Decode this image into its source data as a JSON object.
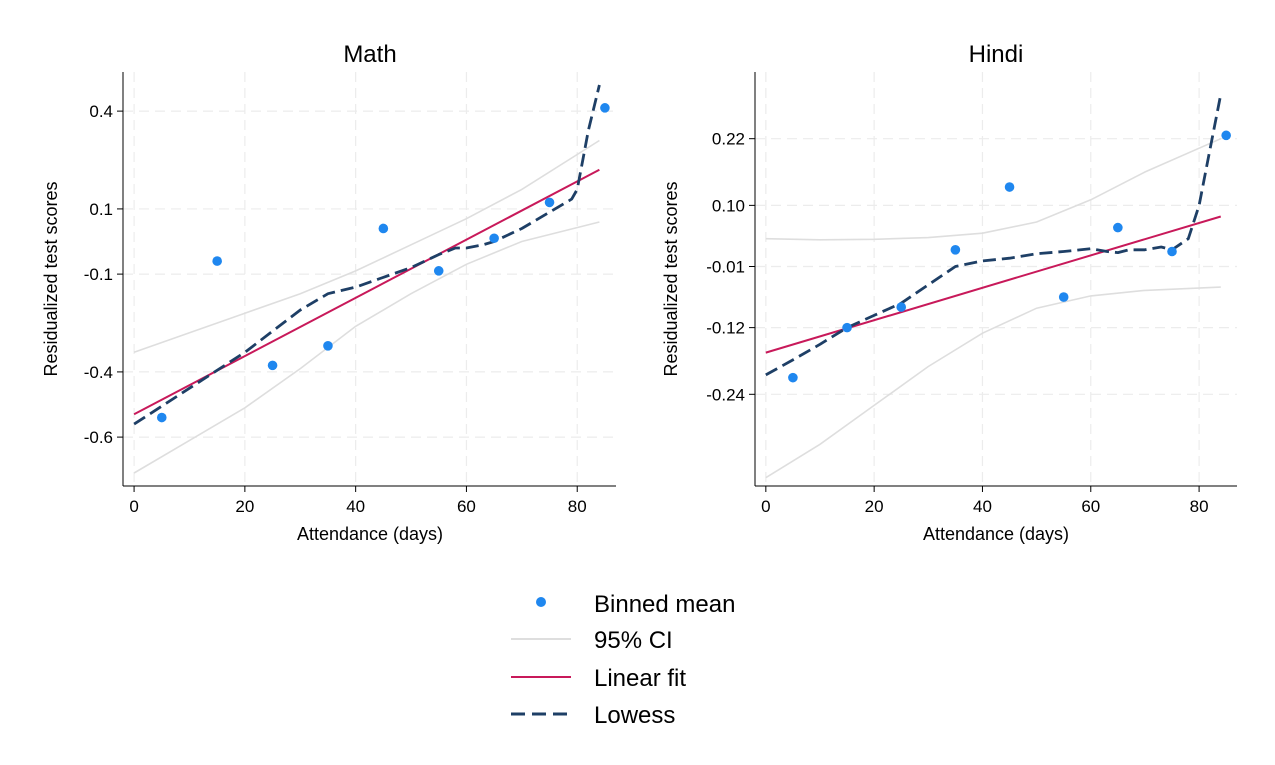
{
  "legend": {
    "placement": "bottom-center",
    "items": [
      {
        "key": "binned",
        "label": "Binned mean",
        "color": "#1f87ef"
      },
      {
        "key": "ci",
        "label": "95% CI",
        "color": "#dedede"
      },
      {
        "key": "linear",
        "label": "Linear fit",
        "color": "#c8195a"
      },
      {
        "key": "lowess",
        "label": "Lowess",
        "color": "#1e3f66"
      }
    ]
  },
  "chart_data": [
    {
      "type": "scatter",
      "title": "Math",
      "xlabel": "Attendance (days)",
      "ylabel": "Residualized test scores",
      "xlim": [
        -2,
        87
      ],
      "ylim": [
        -0.75,
        0.52
      ],
      "xticks": [
        0,
        20,
        40,
        60,
        80
      ],
      "xtick_labels": [
        "0",
        "20",
        "40",
        "60",
        "80"
      ],
      "yticks": [
        0.4,
        0.1,
        -0.1,
        -0.4,
        -0.6
      ],
      "ytick_labels": [
        "0.4",
        "0.1",
        "-0.1",
        "-0.4",
        "-0.6"
      ],
      "grid": true,
      "binned_mean": {
        "x": [
          5,
          15,
          25,
          35,
          45,
          55,
          65,
          75,
          85
        ],
        "y": [
          -0.54,
          -0.06,
          -0.38,
          -0.32,
          0.04,
          -0.09,
          0.01,
          0.12,
          0.41
        ]
      },
      "linear_fit": {
        "x": [
          0,
          84
        ],
        "y": [
          -0.53,
          0.22
        ]
      },
      "ci_upper": {
        "x": [
          0,
          10,
          20,
          30,
          40,
          50,
          60,
          70,
          84
        ],
        "y": [
          -0.34,
          -0.28,
          -0.22,
          -0.16,
          -0.09,
          -0.01,
          0.07,
          0.16,
          0.31
        ]
      },
      "ci_lower": {
        "x": [
          0,
          10,
          20,
          30,
          40,
          50,
          60,
          70,
          84
        ],
        "y": [
          -0.71,
          -0.61,
          -0.51,
          -0.39,
          -0.26,
          -0.16,
          -0.07,
          0.0,
          0.06
        ]
      },
      "lowess": {
        "x": [
          0,
          10,
          20,
          30,
          35,
          40,
          50,
          55,
          58,
          60,
          63,
          65,
          70,
          75,
          79,
          80,
          81,
          82,
          84
        ],
        "y": [
          -0.56,
          -0.45,
          -0.34,
          -0.21,
          -0.16,
          -0.14,
          -0.08,
          -0.04,
          -0.02,
          -0.02,
          -0.01,
          0.0,
          0.04,
          0.09,
          0.13,
          0.16,
          0.25,
          0.34,
          0.48
        ]
      }
    },
    {
      "type": "scatter",
      "title": "Hindi",
      "xlabel": "Attendance (days)",
      "ylabel": "Residualized test scores",
      "xlim": [
        -2,
        87
      ],
      "ylim": [
        -0.405,
        0.34
      ],
      "xticks": [
        0,
        20,
        40,
        60,
        80
      ],
      "xtick_labels": [
        "0",
        "20",
        "40",
        "60",
        "80"
      ],
      "yticks": [
        0.22,
        0.1,
        -0.01,
        -0.12,
        -0.24
      ],
      "ytick_labels": [
        "0.22",
        "0.10",
        "-0.01",
        "-0.12",
        "-0.24"
      ],
      "grid": true,
      "binned_mean": {
        "x": [
          5,
          15,
          25,
          35,
          45,
          55,
          65,
          75,
          85
        ],
        "y": [
          -0.21,
          -0.12,
          -0.083,
          0.02,
          0.133,
          -0.065,
          0.06,
          0.017,
          0.226
        ]
      },
      "linear_fit": {
        "x": [
          0,
          84
        ],
        "y": [
          -0.165,
          0.08
        ]
      },
      "ci_upper": {
        "x": [
          0,
          10,
          20,
          30,
          40,
          50,
          60,
          70,
          84
        ],
        "y": [
          0.04,
          0.038,
          0.039,
          0.042,
          0.05,
          0.07,
          0.11,
          0.16,
          0.22
        ]
      },
      "ci_lower": {
        "x": [
          0,
          10,
          20,
          30,
          40,
          50,
          60,
          70,
          84
        ],
        "y": [
          -0.39,
          -0.33,
          -0.26,
          -0.19,
          -0.13,
          -0.085,
          -0.063,
          -0.053,
          -0.047
        ]
      },
      "lowess": {
        "x": [
          0,
          5,
          10,
          15,
          20,
          25,
          30,
          35,
          40,
          45,
          50,
          55,
          60,
          63,
          65,
          67,
          70,
          73,
          75,
          78,
          80,
          82,
          84
        ],
        "y": [
          -0.205,
          -0.178,
          -0.15,
          -0.12,
          -0.098,
          -0.076,
          -0.043,
          -0.01,
          0.0,
          0.005,
          0.013,
          0.017,
          0.022,
          0.017,
          0.015,
          0.02,
          0.02,
          0.025,
          0.02,
          0.04,
          0.1,
          0.2,
          0.3
        ]
      }
    }
  ]
}
